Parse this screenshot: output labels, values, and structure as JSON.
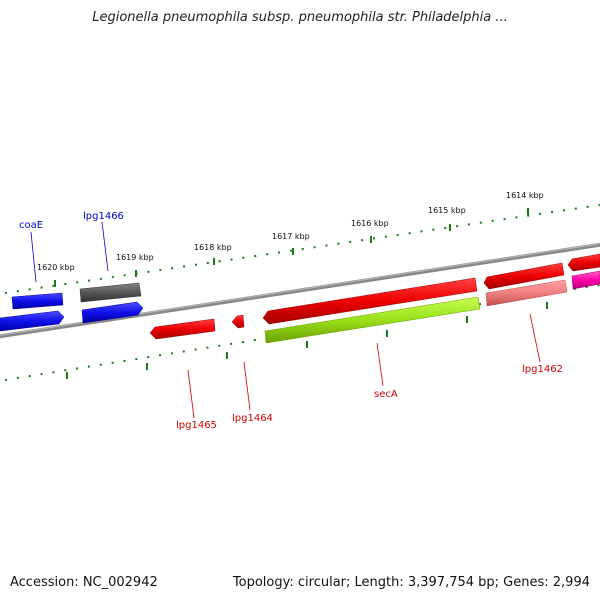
{
  "title": "Legionella pneumophila subsp. pneumophila str. Philadelphia ...",
  "accession_text": "Accession: NC_002942",
  "summary_text": "Topology: circular; Length: 3,397,754 bp; Genes: 2,994",
  "colors": {
    "backbone": "#808080",
    "tick": "#1a7a1a",
    "blue_gene": "#1010ee",
    "red_gene": "#ee0000",
    "pink_gene": "#f08080",
    "green_gene": "#99e01a",
    "gray_gene": "#555555",
    "magenta_gene": "#ff00aa",
    "blue_label": "#0000c8",
    "red_label": "#d00000"
  },
  "scale_labels": [
    "1620 kbp",
    "1619 kbp",
    "1618 kbp",
    "1617 kbp",
    "1616 kbp",
    "1615 kbp",
    "1614 kbp"
  ],
  "gene_labels": {
    "coaE": "coaE",
    "lpg1466": "lpg1466",
    "lpg1465": "lpg1465",
    "lpg1464": "lpg1464",
    "secA": "secA",
    "lpg1462": "lpg1462"
  }
}
